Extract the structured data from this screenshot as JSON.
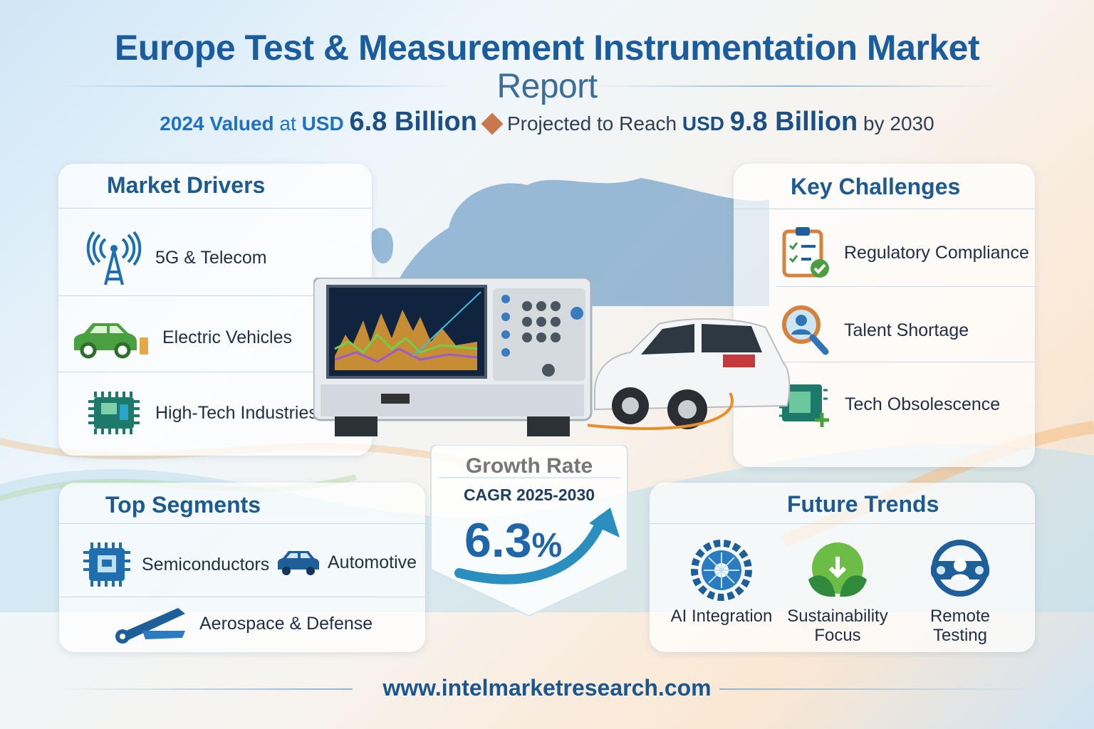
{
  "header": {
    "title_line1": "Europe Test & Measurement Instrumentation Market",
    "title_line2": "Report",
    "sub_year_valued": "2024 Valued",
    "sub_at": "at",
    "sub_usd1": "USD",
    "sub_value1": "6.8 Billion",
    "sub_projected": "Projected to Reach",
    "sub_usd2": "USD",
    "sub_value2": "9.8 Billion",
    "sub_by": "by 2030"
  },
  "drivers": {
    "title": "Market Drivers",
    "items": [
      {
        "label": "5G & Telecom",
        "icon": "cell-tower-icon"
      },
      {
        "label": "Electric Vehicles",
        "icon": "electric-car-icon"
      },
      {
        "label": "High-Tech Industries",
        "icon": "circuit-chip-icon"
      }
    ]
  },
  "challenges": {
    "title": "Key Challenges",
    "items": [
      {
        "label": "Regulatory Compliance",
        "icon": "clipboard-check-icon"
      },
      {
        "label": "Talent Shortage",
        "icon": "person-search-icon"
      },
      {
        "label": "Tech Obsolescence",
        "icon": "circuit-board-icon"
      }
    ]
  },
  "growth": {
    "title": "Growth Rate",
    "period": "CAGR 2025-2030",
    "value": "6.3",
    "unit": "%"
  },
  "segments": {
    "title": "Top Segments",
    "items": [
      {
        "label": "Semiconductors",
        "icon": "chip-icon"
      },
      {
        "label": "Automotive",
        "icon": "car-icon"
      },
      {
        "label": "Aerospace & Defense",
        "icon": "wrench-icon"
      }
    ]
  },
  "trends": {
    "title": "Future Trends",
    "items": [
      {
        "label": "AI Integration",
        "icon": "ai-gear-icon"
      },
      {
        "label": "Sustainability Focus",
        "icon": "leaf-icon"
      },
      {
        "label": "Remote Testing",
        "icon": "remote-user-icon"
      }
    ]
  },
  "footer": {
    "url": "www.intelmarketresearch.com"
  },
  "colors": {
    "primary": "#1b5c9c",
    "accent": "#c9784d",
    "green": "#4aa040",
    "teal": "#2a8fbf"
  }
}
